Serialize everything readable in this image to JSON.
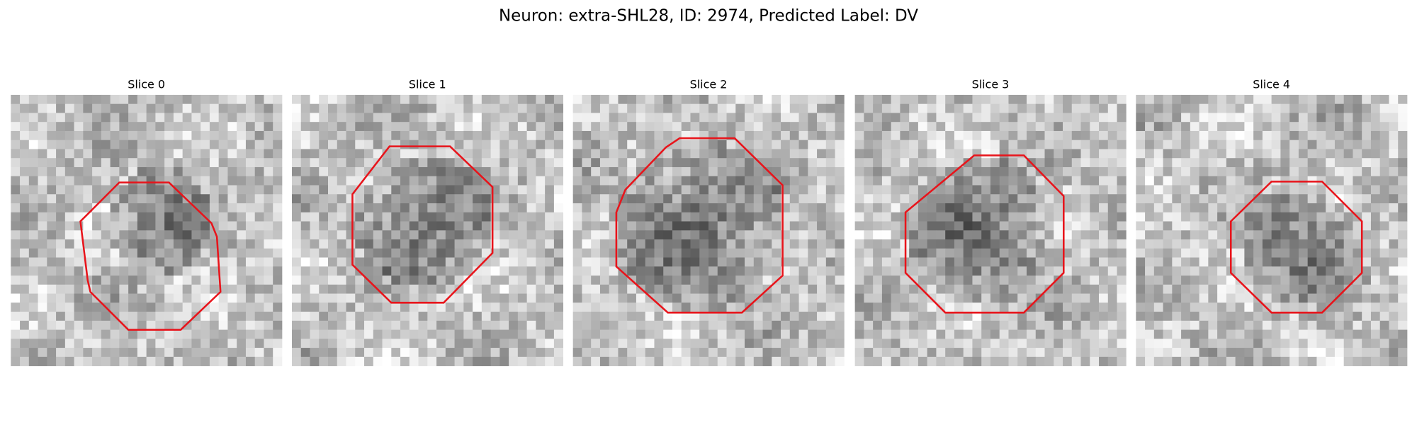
{
  "title": "Neuron: extra-SHL28, ID: 2974, Predicted Label: DV",
  "panels": [
    {
      "label": "Slice 0"
    },
    {
      "label": "Slice 1"
    },
    {
      "label": "Slice 2"
    },
    {
      "label": "Slice 3"
    },
    {
      "label": "Slice 4"
    }
  ]
}
